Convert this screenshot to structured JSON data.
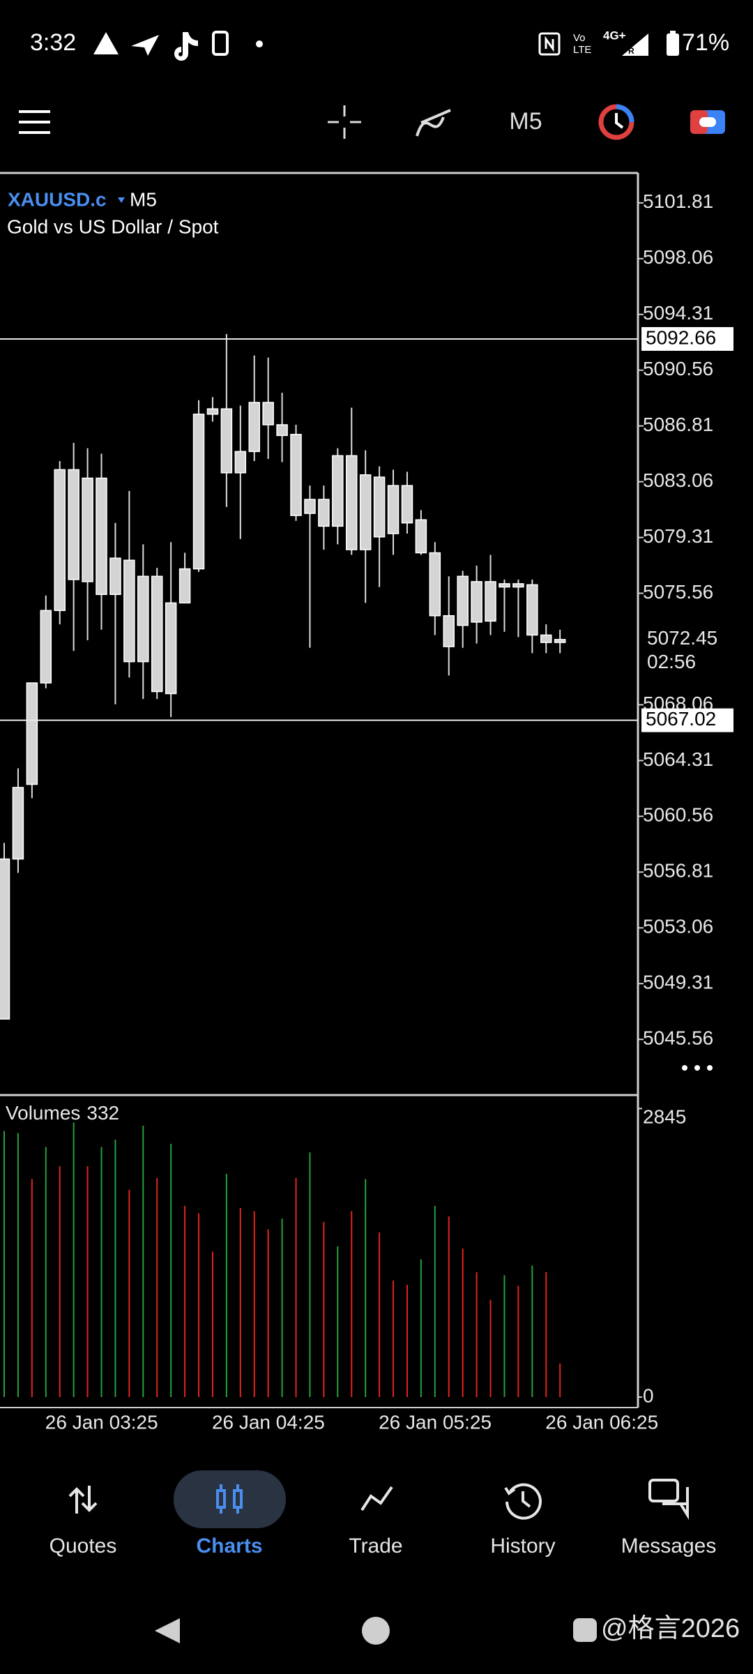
{
  "status_bar": {
    "time": "3:32",
    "volte_top": "Vo",
    "volte_bottom": "LTE",
    "network": "4G+",
    "roaming": "R",
    "battery": "71%"
  },
  "toolbar": {
    "timeframe": "M5"
  },
  "chart_data": {
    "type": "candlestick",
    "symbol": "XAUUSD.c",
    "timeframe": "M5",
    "subtitle": "Gold vs US Dollar / Spot",
    "categories": [
      null,
      null,
      null,
      "26 Jan 03:25",
      null,
      null,
      null,
      null,
      null,
      null,
      null,
      null,
      null,
      null,
      null,
      "26 Jan 04:25",
      null,
      null,
      null,
      null,
      null,
      null,
      null,
      null,
      null,
      null,
      null,
      "26 Jan 05:25",
      null,
      null,
      null,
      null,
      null,
      null,
      null,
      null,
      null,
      null,
      null,
      "26 Jan 06:25",
      null
    ],
    "open": [
      5046.93,
      5057.69,
      5062.71,
      5069.53,
      5074.4,
      5083.87,
      5076.34,
      5083.3,
      5075.48,
      5077.78,
      5070.96,
      5076.7,
      5068.81,
      5074.91,
      5077.2,
      5087.6,
      5087.96,
      5083.66,
      5085.09,
      5088.39,
      5086.89,
      5086.24,
      5080.93,
      5081.87,
      5080.07,
      5084.81,
      5078.49,
      5083.37,
      5079.57,
      5082.8,
      5080.5,
      5078.28,
      5074.05,
      5073.4,
      5076.34,
      5073.69,
      5076.2,
      5075.98,
      5076.13,
      5072.75,
      5072.25
    ],
    "high": [
      5058.77,
      5063.79,
      5069.53,
      5075.41,
      5084.45,
      5085.67,
      5085.31,
      5084.95,
      5080.29,
      5082.44,
      5078.85,
      5077.27,
      5079.0,
      5078.28,
      5088.54,
      5088.75,
      5092.99,
      5088.18,
      5091.55,
      5091.41,
      5089.04,
      5086.89,
      5082.8,
      5082.8,
      5085.31,
      5088.04,
      5085.17,
      5084.09,
      5083.87,
      5083.73,
      5081.15,
      5079.0,
      5076.7,
      5077.06,
      5077.42,
      5078.14,
      5076.48,
      5076.48,
      5076.48,
      5073.47,
      5073.11
    ],
    "low": [
      5046.93,
      5056.76,
      5061.78,
      5069.17,
      5073.47,
      5071.68,
      5072.4,
      5073.11,
      5068.09,
      5069.89,
      5068.45,
      5068.45,
      5067.23,
      5074.91,
      5076.99,
      5087.1,
      5081.36,
      5079.21,
      5084.45,
      5084.59,
      5084.38,
      5080.43,
      5071.89,
      5078.49,
      5078.85,
      5078.14,
      5074.91,
      5075.98,
      5078.14,
      5079.57,
      5078.14,
      5072.75,
      5070.03,
      5071.89,
      5072.18,
      5072.75,
      5072.97,
      5072.61,
      5071.53,
      5071.53,
      5071.53
    ],
    "close": [
      5057.69,
      5062.5,
      5069.53,
      5074.4,
      5083.87,
      5076.48,
      5083.3,
      5075.48,
      5077.92,
      5070.96,
      5076.7,
      5068.95,
      5074.91,
      5077.2,
      5087.6,
      5087.96,
      5083.66,
      5085.09,
      5088.39,
      5086.89,
      5086.17,
      5080.79,
      5081.87,
      5080.07,
      5084.81,
      5078.49,
      5083.52,
      5079.35,
      5082.8,
      5080.29,
      5078.28,
      5074.05,
      5071.97,
      5076.7,
      5073.62,
      5076.34,
      5075.98,
      5076.2,
      5072.75,
      5072.25,
      5072.45
    ],
    "candle_color": "#d4d4d4",
    "ylim": [
      5041.91,
      5103.82
    ],
    "yticks": [
      5101.81,
      5098.06,
      5094.31,
      5090.56,
      5086.81,
      5083.06,
      5079.31,
      5075.56,
      5068.06,
      5064.31,
      5060.56,
      5056.81,
      5053.06,
      5049.31,
      5045.56
    ],
    "hlines": [
      5092.66,
      5067.02
    ],
    "last_price": 5072.45,
    "timer": "02:56",
    "volume": {
      "name": "Volumes",
      "values": [
        2624,
        2603,
        2150,
        2466,
        2276,
        2708,
        2276,
        2466,
        2539,
        2044,
        2676,
        2160,
        2497,
        1886,
        1812,
        1433,
        2202,
        1865,
        1833,
        1654,
        1760,
        2160,
        2413,
        1728,
        1486,
        1833,
        2150,
        1623,
        1149,
        1106,
        1359,
        1886,
        1781,
        1465,
        1233,
        959,
        1201,
        1096,
        1296,
        1233,
        332
      ],
      "colors": [
        "#22a33a",
        "#22a33a",
        "#e3241d",
        "#22a33a",
        "#e3241d",
        "#22a33a",
        "#e3241d",
        "#22a33a",
        "#22a33a",
        "#e3241d",
        "#22a33a",
        "#e3241d",
        "#22a33a",
        "#e3241d",
        "#e3241d",
        "#e3241d",
        "#22a33a",
        "#e3241d",
        "#e3241d",
        "#e3241d",
        "#22a33a",
        "#e3241d",
        "#22a33a",
        "#e3241d",
        "#22a33a",
        "#e3241d",
        "#22a33a",
        "#e3241d",
        "#e3241d",
        "#e3241d",
        "#22a33a",
        "#22a33a",
        "#e3241d",
        "#e3241d",
        "#e3241d",
        "#e3241d",
        "#22a33a",
        "#e3241d",
        "#22a33a",
        "#e3241d",
        "#e3241d"
      ],
      "ylim": [
        0,
        2971
      ],
      "yticks": [
        0,
        2845
      ]
    }
  },
  "nav": [
    "Quotes",
    "Charts",
    "Trade",
    "History",
    "Messages"
  ],
  "watermark": "@格言2026"
}
